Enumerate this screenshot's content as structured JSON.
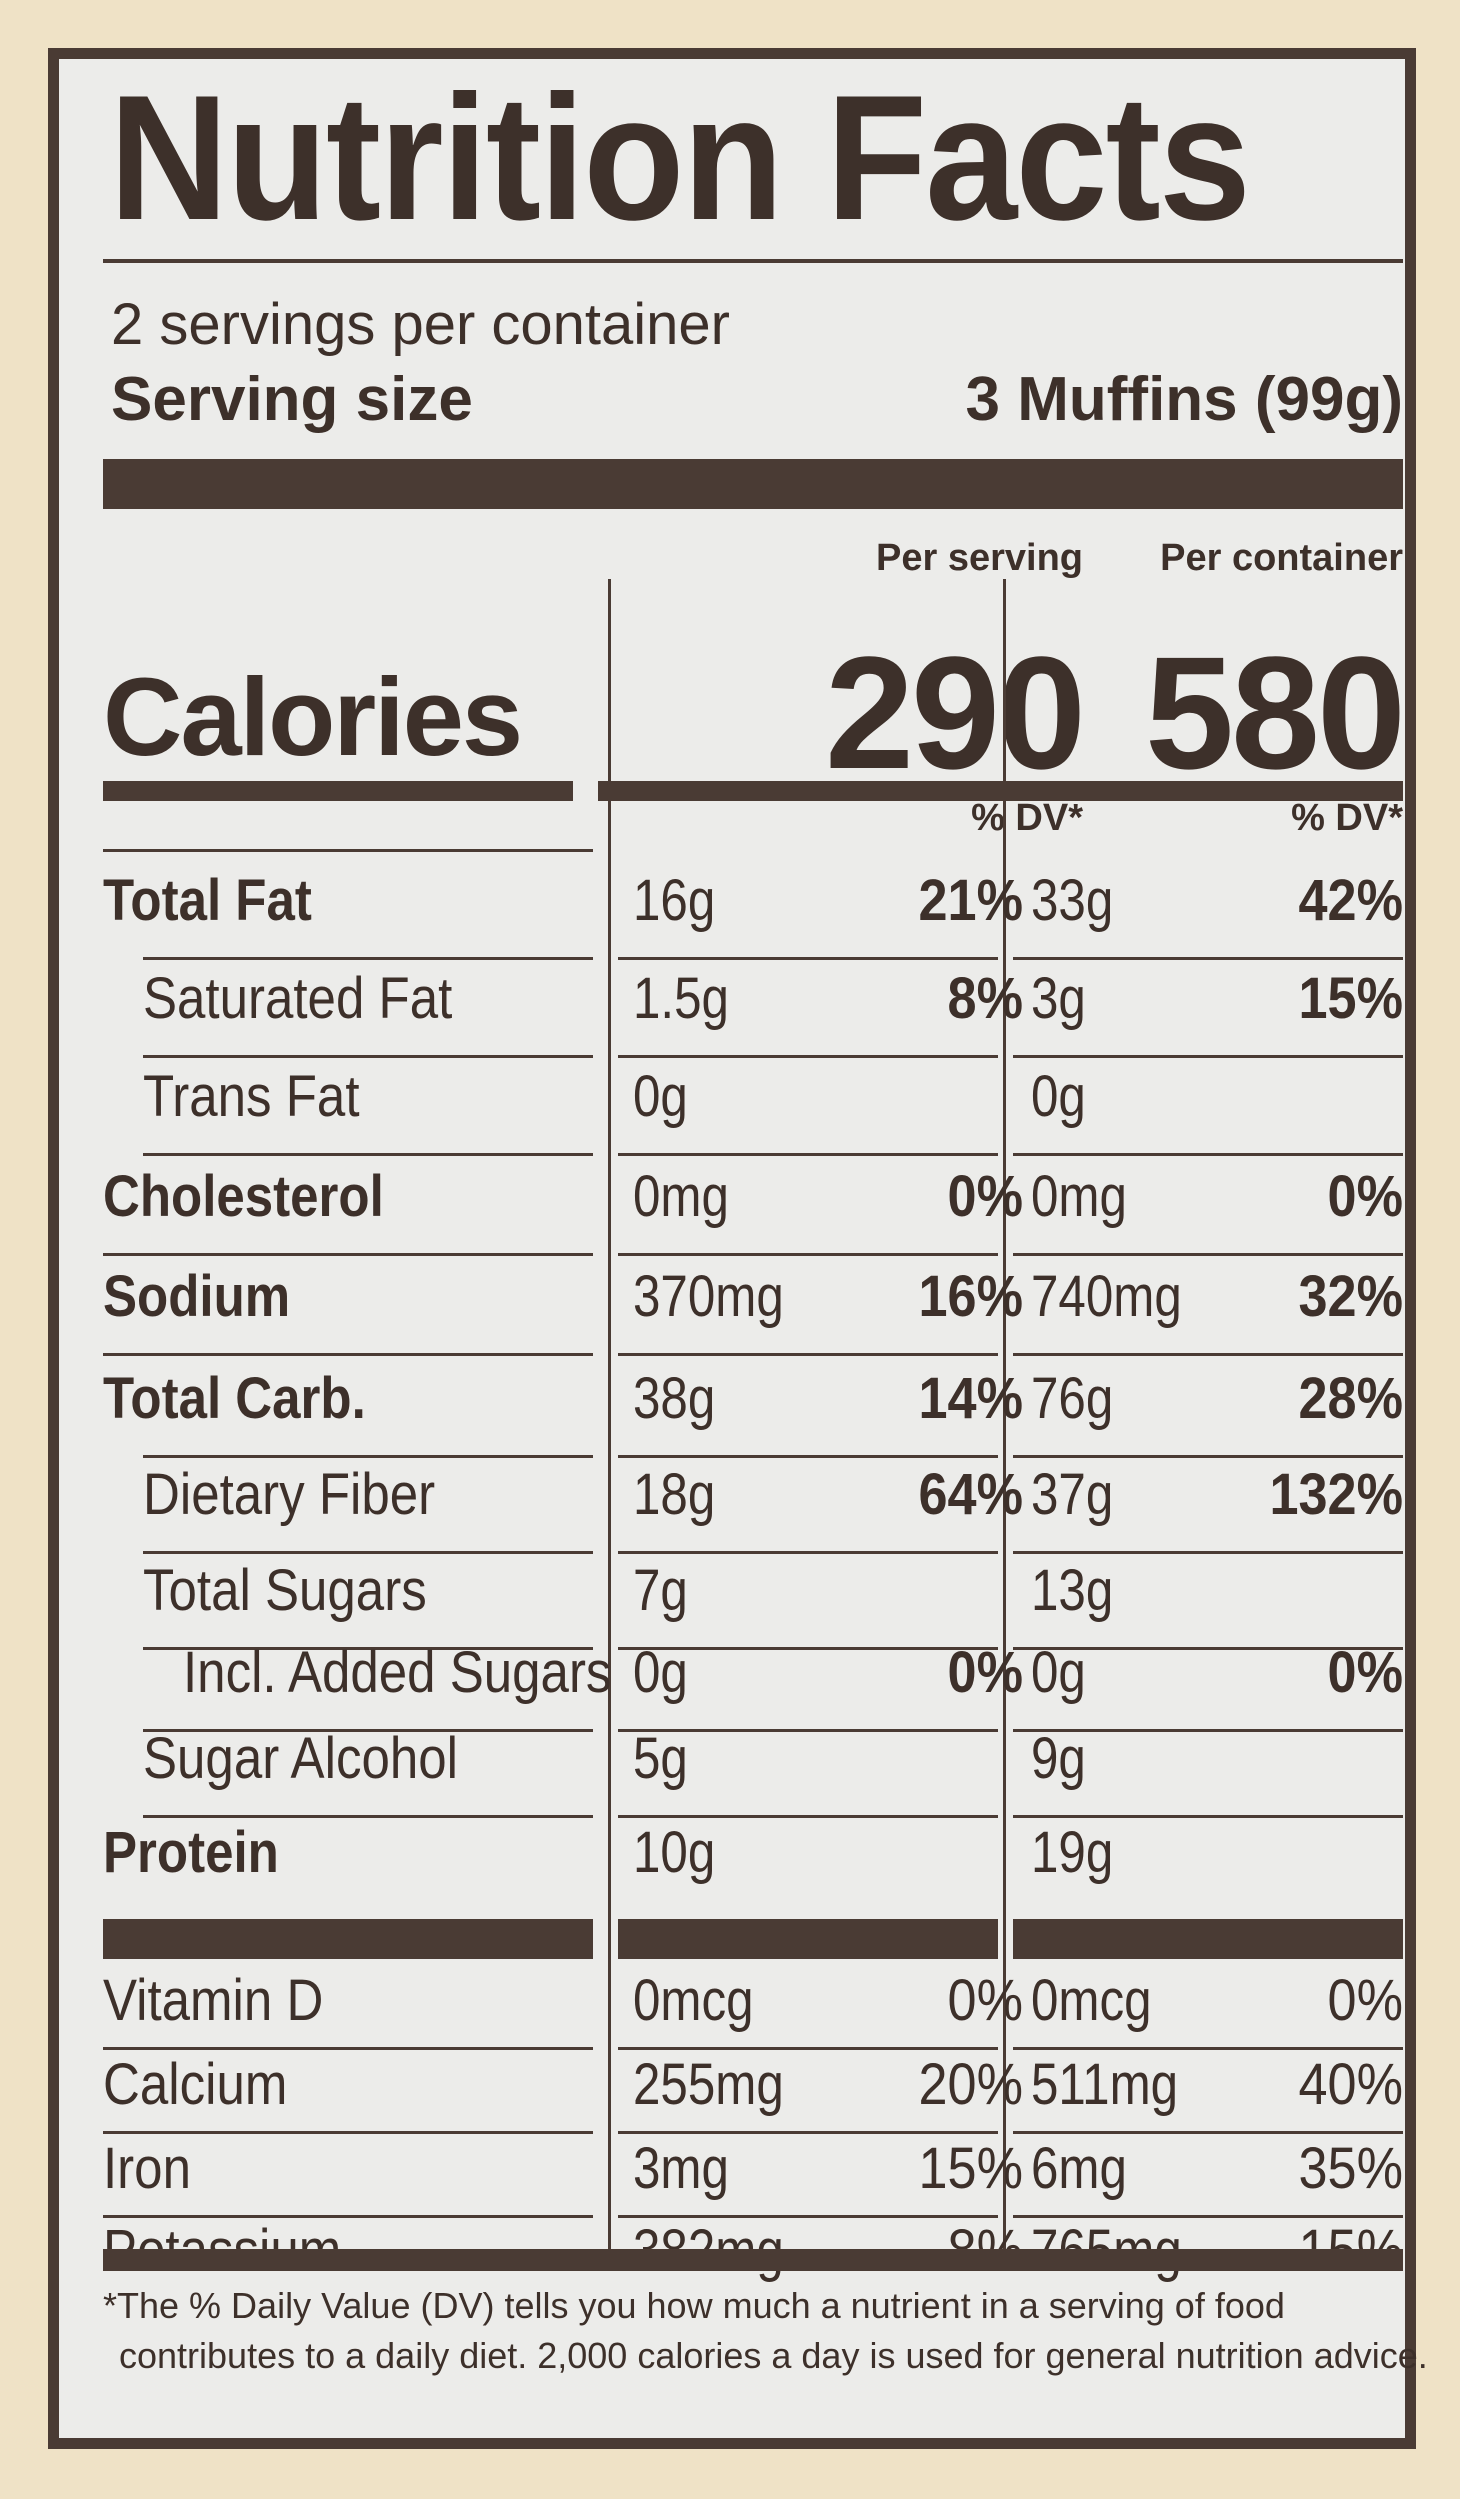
{
  "label": {
    "title": "Nutrition Facts",
    "servings_per_container": "2 servings per container",
    "serving_size_label": "Serving size",
    "serving_size_value": "3 Muffins (99g)",
    "per_serving_header": "Per serving",
    "per_container_header": "Per container",
    "calories_label": "Calories",
    "calories_per_serving": "290",
    "calories_per_container": "580",
    "dv_header": "% DV*"
  },
  "nutrients": [
    {
      "name": "Total Fat",
      "bold": true,
      "serv_amt": "16g",
      "serv_dv": "21%",
      "cont_amt": "33g",
      "cont_dv": "42%"
    },
    {
      "name": "Saturated Fat",
      "bold": false,
      "serv_amt": "1.5g",
      "serv_dv": "8%",
      "cont_amt": "3g",
      "cont_dv": "15%"
    },
    {
      "name": "Trans Fat",
      "bold": false,
      "serv_amt": "0g",
      "serv_dv": "",
      "cont_amt": "0g",
      "cont_dv": ""
    },
    {
      "name": "Cholesterol",
      "bold": true,
      "serv_amt": "0mg",
      "serv_dv": "0%",
      "cont_amt": "0mg",
      "cont_dv": "0%"
    },
    {
      "name": "Sodium",
      "bold": true,
      "serv_amt": "370mg",
      "serv_dv": "16%",
      "cont_amt": "740mg",
      "cont_dv": "32%"
    },
    {
      "name": "Total Carb.",
      "bold": true,
      "serv_amt": "38g",
      "serv_dv": "14%",
      "cont_amt": "76g",
      "cont_dv": "28%"
    },
    {
      "name": "Dietary Fiber",
      "bold": false,
      "serv_amt": "18g",
      "serv_dv": "64%",
      "cont_amt": "37g",
      "cont_dv": "132%"
    },
    {
      "name": "Total Sugars",
      "bold": false,
      "serv_amt": "7g",
      "serv_dv": "",
      "cont_amt": "13g",
      "cont_dv": ""
    },
    {
      "name": "Incl. Added Sugars",
      "bold": false,
      "serv_amt": "0g",
      "serv_dv": "0%",
      "cont_amt": "0g",
      "cont_dv": "0%"
    },
    {
      "name": "Sugar Alcohol",
      "bold": false,
      "serv_amt": "5g",
      "serv_dv": "",
      "cont_amt": "9g",
      "cont_dv": ""
    },
    {
      "name": "Protein",
      "bold": true,
      "serv_amt": "10g",
      "serv_dv": "",
      "cont_amt": "19g",
      "cont_dv": ""
    }
  ],
  "vitamins": [
    {
      "name": "Vitamin D",
      "serv_amt": "0mcg",
      "serv_dv": "0%",
      "cont_amt": "0mcg",
      "cont_dv": "0%"
    },
    {
      "name": "Calcium",
      "serv_amt": "255mg",
      "serv_dv": "20%",
      "cont_amt": "511mg",
      "cont_dv": "40%"
    },
    {
      "name": "Iron",
      "serv_amt": "3mg",
      "serv_dv": "15%",
      "cont_amt": "6mg",
      "cont_dv": "35%"
    },
    {
      "name": "Potassium",
      "serv_amt": "382mg",
      "serv_dv": "8%",
      "cont_amt": "765mg",
      "cont_dv": "15%"
    }
  ],
  "footnote": {
    "line1": "*The % Daily Value (DV) tells you how much a nutrient in a serving of food",
    "line2": "contributes to a daily diet. 2,000 calories a day is used for general nutrition advice."
  },
  "colors": {
    "ink": "#4a3b34",
    "panel": "#ececea",
    "background": "#efe2c6"
  }
}
